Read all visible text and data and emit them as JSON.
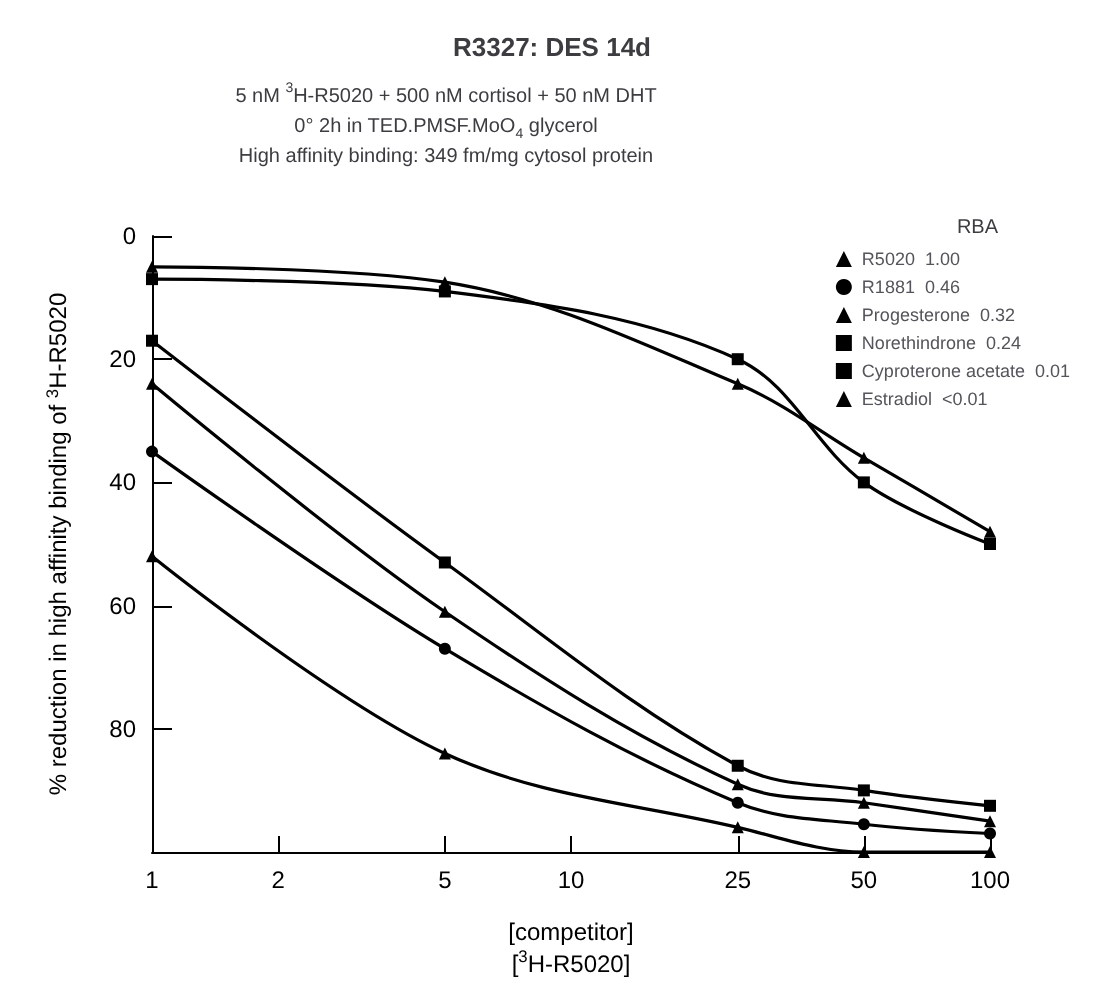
{
  "chart_data": {
    "type": "line",
    "title": "R3327: DES 14d",
    "subtitle": "5 nM $^{3}$H-R5020 + 500 nM cortisol + 50 nM DHT\n0° 2h in TED.PMSF.MoO$_{4}$ glycerol\nHigh affinity binding: 349 fm/mg cytosol protein",
    "xlabel": "[competitor]\n[$^{3}$H-R5020]",
    "ylabel": "% reduction in high affinity binding of $^{3}$H-R5020",
    "legend_title": "RBA",
    "legend": "top right",
    "grid": false,
    "log": "x",
    "x": [
      1,
      5,
      25,
      50,
      100
    ],
    "xlim": [
      1,
      100
    ],
    "xticks": [
      1,
      2,
      5,
      10,
      25,
      50,
      100
    ],
    "ylim": [
      100,
      0
    ],
    "yticks": [
      0,
      20,
      40,
      60,
      80
    ],
    "series": [
      {
        "name": "R5020  1.00",
        "color": "#000000",
        "marker": "triangle",
        "values": [
          52,
          84,
          96,
          100,
          100
        ]
      },
      {
        "name": "R1881  0.46",
        "color": "#000000",
        "marker": "circle",
        "values": [
          35,
          67,
          92,
          95.5,
          97
        ]
      },
      {
        "name": "Progesterone  0.32",
        "color": "#000000",
        "marker": "triangle",
        "values": [
          24,
          61,
          89,
          92,
          95
        ]
      },
      {
        "name": "Norethindrone  0.24",
        "color": "#000000",
        "marker": "square",
        "values": [
          17,
          53,
          86,
          90,
          92.5
        ]
      },
      {
        "name": "Cyproterone acetate  0.01",
        "color": "#000000",
        "marker": "square",
        "values": [
          7,
          9,
          20,
          40,
          50
        ]
      },
      {
        "name": "Estradiol  <0.01",
        "color": "#000000",
        "marker": "triangle",
        "values": [
          5,
          7.5,
          24,
          36,
          48
        ]
      }
    ]
  }
}
